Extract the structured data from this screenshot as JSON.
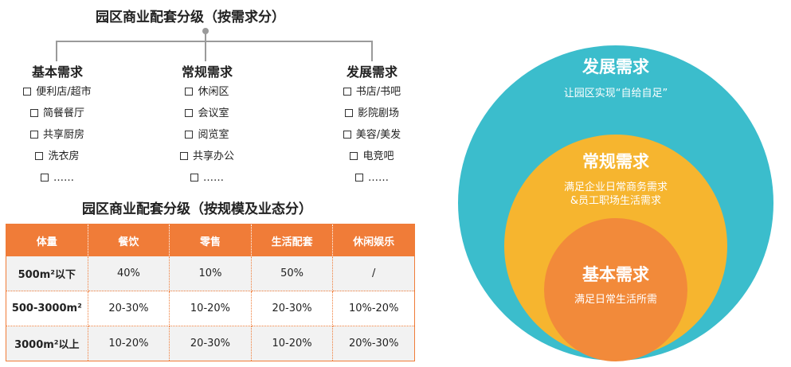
{
  "tree": {
    "title": "园区商业配套分级（按需求分）",
    "columns": [
      {
        "heading": "基本需求",
        "items": [
          "便利店/超市",
          "简餐餐厅",
          "共享厨房",
          "洗衣房",
          "……"
        ]
      },
      {
        "heading": "常规需求",
        "items": [
          "休闲区",
          "会议室",
          "阅览室",
          "共享办公",
          "……"
        ]
      },
      {
        "heading": "发展需求",
        "items": [
          "书店/书吧",
          "影院剧场",
          "美容/美发",
          "电竞吧",
          "……"
        ]
      }
    ]
  },
  "table": {
    "title": "园区商业配套分级（按规模及业态分）",
    "headers": [
      "体量",
      "餐饮",
      "零售",
      "生活配套",
      "休闲娱乐"
    ],
    "rows": [
      [
        "500m²以下",
        "40%",
        "10%",
        "50%",
        "/"
      ],
      [
        "500-3000m²",
        "20-30%",
        "10-20%",
        "20-30%",
        "10%-20%"
      ],
      [
        "3000m²以上",
        "10-20%",
        "20-30%",
        "10-20%",
        "20%-30%"
      ]
    ]
  },
  "circles": {
    "outer": {
      "title": "发展需求",
      "desc": "让园区实现“自给自足”",
      "color": "#3bbdcc"
    },
    "middle": {
      "title": "常规需求",
      "desc_line1": "满足企业日常商务需求",
      "desc_line2": "&员工职场生活需求",
      "color": "#f6b52f"
    },
    "inner": {
      "title": "基本需求",
      "desc": "满足日常生活所需",
      "color": "#f28a3a"
    }
  }
}
